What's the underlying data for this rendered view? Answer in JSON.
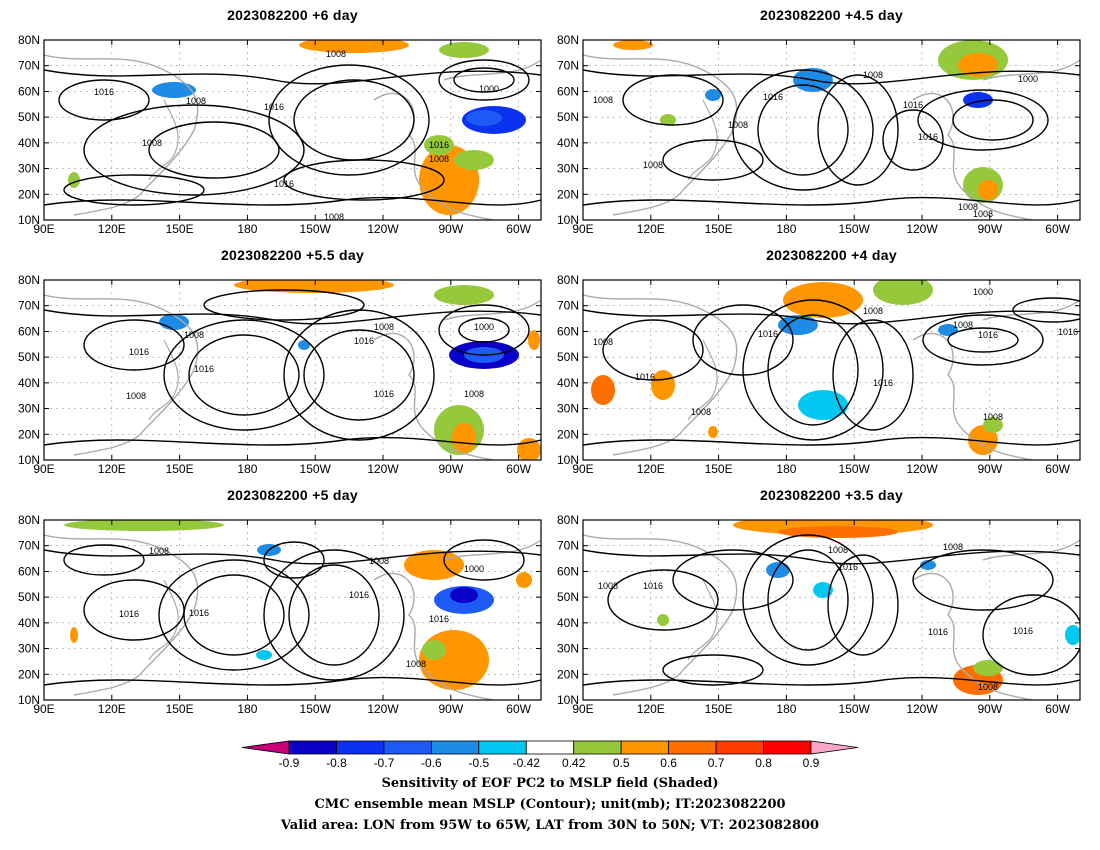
{
  "panels": [
    {
      "id": "p1",
      "title": "2023082200 +6 day"
    },
    {
      "id": "p2",
      "title": "2023082200 +4.5 day"
    },
    {
      "id": "p3",
      "title": "2023082200 +5.5 day"
    },
    {
      "id": "p4",
      "title": "2023082200 +4 day"
    },
    {
      "id": "p5",
      "title": "2023082200 +5 day"
    },
    {
      "id": "p6",
      "title": "2023082200 +3.5 day"
    }
  ],
  "axes": {
    "lon_labels": [
      "90E",
      "120E",
      "150E",
      "180",
      "150W",
      "120W",
      "90W",
      "60W"
    ],
    "lat_labels": [
      "10N",
      "20N",
      "30N",
      "40N",
      "50N",
      "60N",
      "70N",
      "80N"
    ],
    "lon_range": [
      90,
      310
    ],
    "lat_range": [
      10,
      80
    ]
  },
  "contour_labels": [
    "1000",
    "1008",
    "1016"
  ],
  "colorbar": {
    "levels": [
      "-0.9",
      "-0.8",
      "-0.7",
      "-0.6",
      "-0.5",
      "-0.42",
      "0.42",
      "0.5",
      "0.6",
      "0.7",
      "0.8",
      "0.9"
    ],
    "colors": [
      "#c8007a",
      "#0a00c8",
      "#0a32f0",
      "#1e5af5",
      "#1e8ce6",
      "#00c8f0",
      "#ffffff",
      "#96c83c",
      "#ff9600",
      "#ff6e00",
      "#ff3c00",
      "#ff0000",
      "#f9a6c8"
    ]
  },
  "caption": {
    "line1": "Sensitivity of EOF PC2 to MSLP field (Shaded)",
    "line2": "CMC ensemble mean MSLP (Contour); unit(mb); IT:2023082200",
    "line3": "Valid area: LON from 95W to 65W, LAT from 30N to 50N; VT: 2023082800"
  }
}
